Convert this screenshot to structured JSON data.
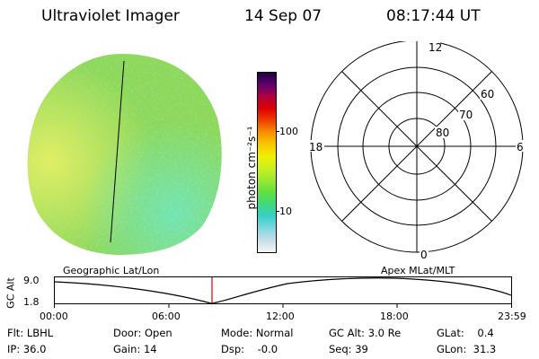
{
  "header": {
    "title": "Ultraviolet Imager",
    "date": "14 Sep 07",
    "time": "08:17:44 UT"
  },
  "colorbar": {
    "label": "photon cm⁻²s⁻¹",
    "ticks": [
      "100",
      "10"
    ],
    "colors": [
      "#f4f4f4",
      "#c8dde8",
      "#7fd8e0",
      "#38d0c8",
      "#40d880",
      "#60e040",
      "#98e830",
      "#c8f020",
      "#f0f000",
      "#f8c800",
      "#f89000",
      "#f04000",
      "#e00000",
      "#b00040",
      "#600070",
      "#200040"
    ]
  },
  "image": {
    "base_color": "#8ed85a",
    "highlight_color": "#e8f060",
    "edge_color": "#6ce8c8"
  },
  "polar": {
    "labels": {
      "mlt12": "12",
      "mlt18": "18",
      "mlt6": "6",
      "mlt0": "0",
      "lat60": "60",
      "lat70": "70",
      "lat80": "80"
    }
  },
  "panel_labels": {
    "geo": "Geographic Lat/Lon",
    "apex": "Apex MLat/MLT"
  },
  "altitude_plot": {
    "axis_label": "GC Alt",
    "y_top": "9.0",
    "y_bottom": "1.8",
    "x_ticks": [
      "00:00",
      "06:00",
      "12:00",
      "18:00",
      "23:59"
    ],
    "marker_color": "#e00000"
  },
  "info": {
    "row1": {
      "flt": "Flt: LBHL",
      "door": "Door: Open",
      "mode": "Mode: Normal",
      "gcalt": "GC Alt: 3.0 Re",
      "glat": "GLat:    0.4"
    },
    "row2": {
      "ip": "IP: 36.0",
      "gain": "Gain: 14",
      "dsp": "Dsp:    -0.0",
      "seq": "Seq: 39",
      "glon": "GLon:  31.3"
    }
  }
}
